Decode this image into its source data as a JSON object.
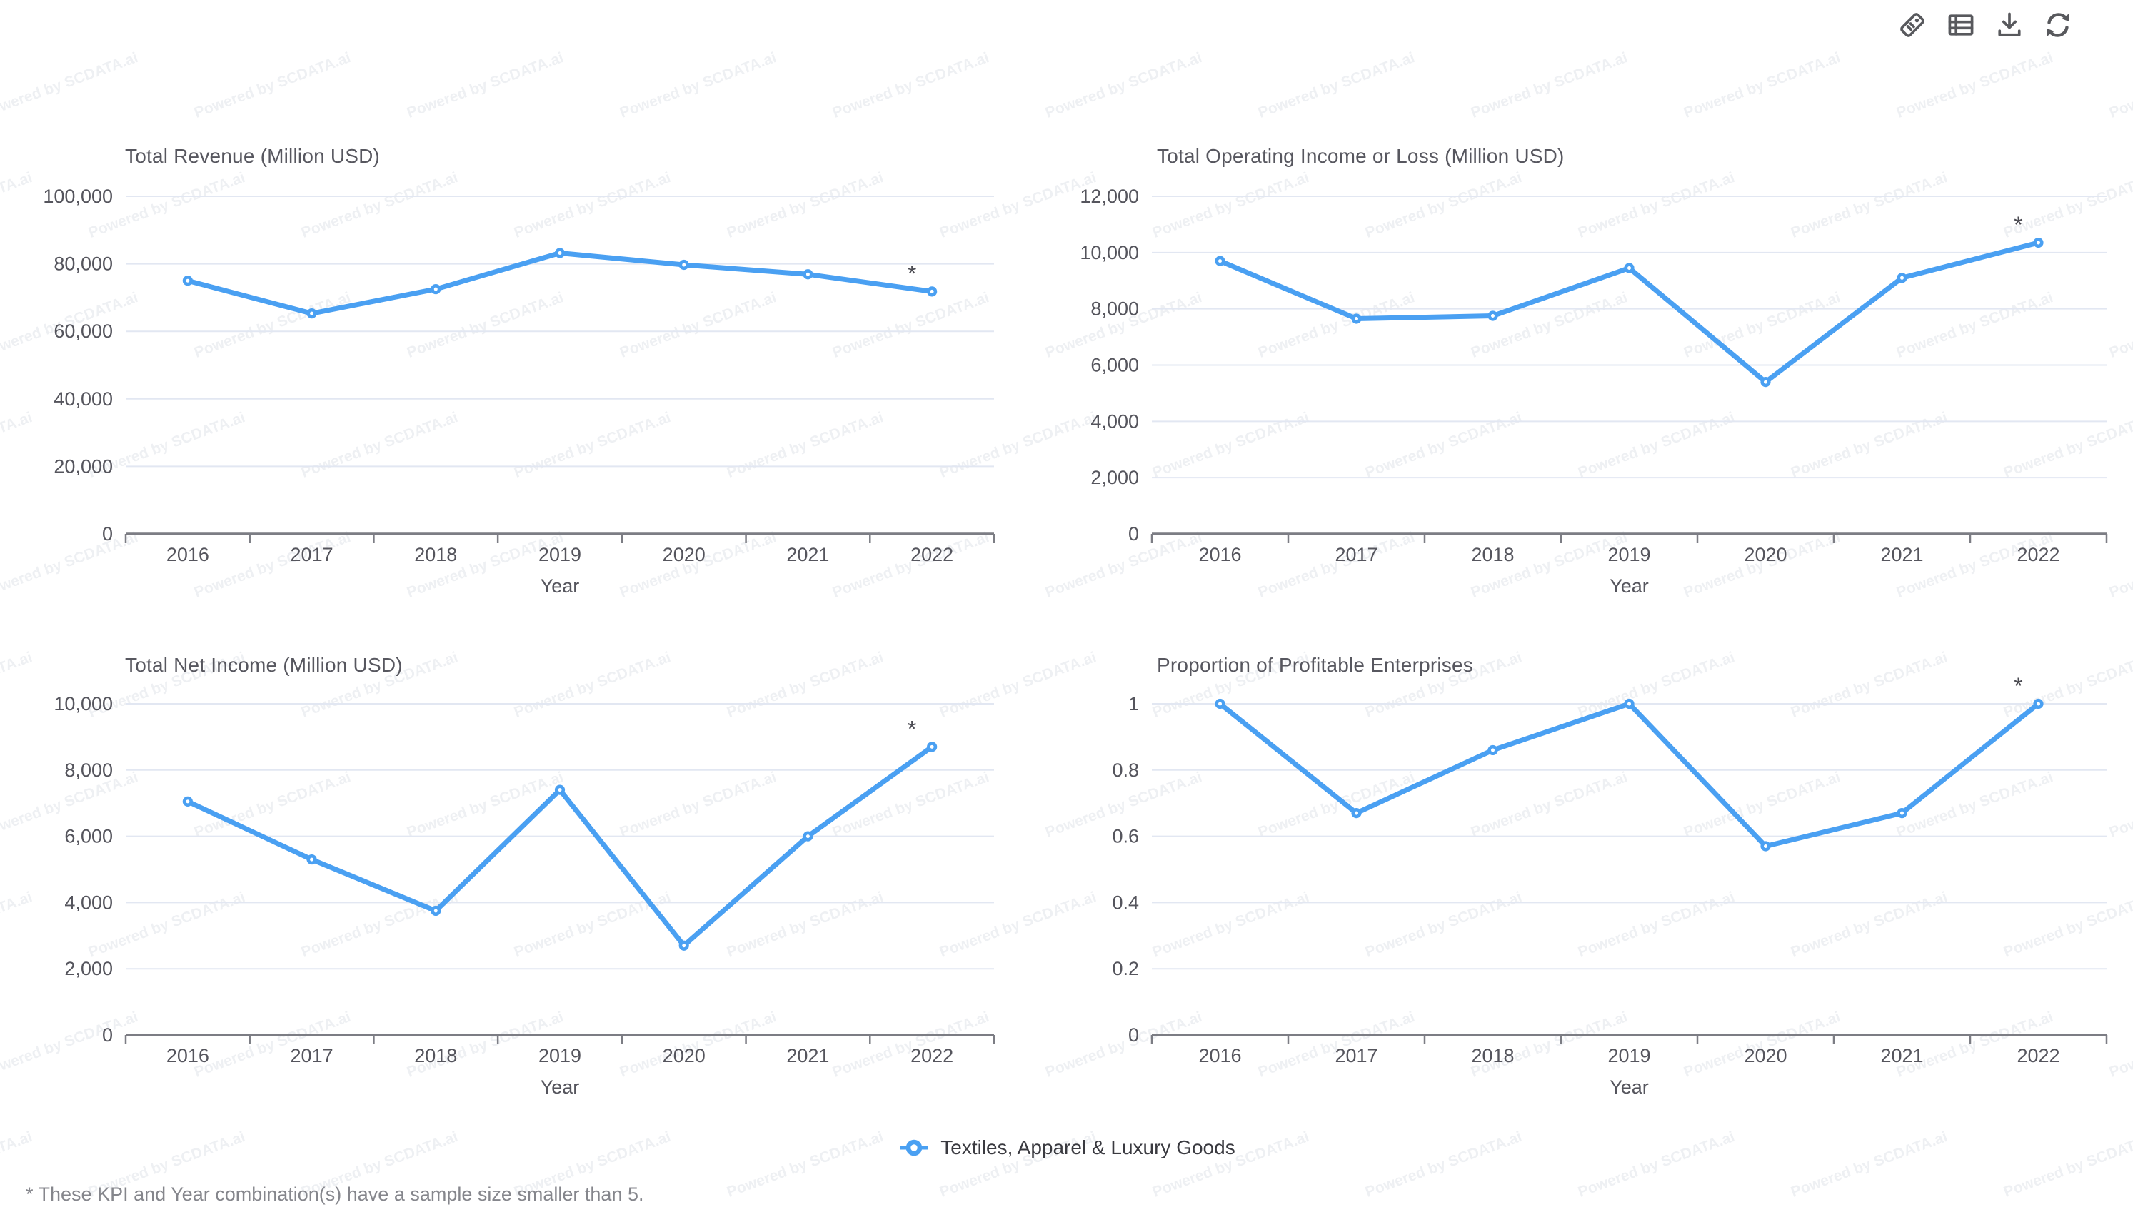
{
  "watermark": {
    "text": "Powered by SCDATA.ai"
  },
  "toolbar": {
    "buttons": [
      {
        "name": "tag"
      },
      {
        "name": "table-view"
      },
      {
        "name": "download"
      },
      {
        "name": "refresh"
      }
    ]
  },
  "legend": {
    "label": "Textiles, Apparel & Luxury Goods",
    "marker_color": "#4aa0f2"
  },
  "footnote": "* These KPI and Year combination(s) have a sample size smaller than 5.",
  "colors": {
    "line": "#4aa0f2",
    "grid": "#e2e7f2",
    "axis": "#7c7d84",
    "tick_text": "#55555d",
    "title_text": "#57575f"
  },
  "chart_data": [
    {
      "id": "total-revenue",
      "type": "line",
      "title": "Total Revenue (Million USD)",
      "xlabel": "Year",
      "x": [
        "2016",
        "2017",
        "2018",
        "2019",
        "2020",
        "2021",
        "2022"
      ],
      "series": [
        {
          "name": "Textiles, Apparel & Luxury Goods",
          "values": [
            75000,
            65300,
            72500,
            83200,
            79700,
            76900,
            71800
          ]
        }
      ],
      "ylim": [
        0,
        100000
      ],
      "y_ticks": [
        "100,000",
        "80,000",
        "60,000",
        "40,000",
        "20,000",
        "0"
      ],
      "grid": true,
      "annotations": [
        {
          "x": "2022",
          "text": "*"
        }
      ]
    },
    {
      "id": "total-operating-income-or-loss",
      "type": "line",
      "title": "Total Operating Income or Loss (Million USD)",
      "xlabel": "Year",
      "x": [
        "2016",
        "2017",
        "2018",
        "2019",
        "2020",
        "2021",
        "2022"
      ],
      "series": [
        {
          "name": "Textiles, Apparel & Luxury Goods",
          "values": [
            9700,
            7650,
            7750,
            9450,
            5400,
            9100,
            10350
          ]
        }
      ],
      "ylim": [
        0,
        12000
      ],
      "y_ticks": [
        "12,000",
        "10,000",
        "8,000",
        "6,000",
        "4,000",
        "2,000",
        "0"
      ],
      "grid": true,
      "annotations": [
        {
          "x": "2022",
          "text": "*"
        }
      ]
    },
    {
      "id": "total-net-income",
      "type": "line",
      "title": "Total Net Income (Million USD)",
      "xlabel": "Year",
      "x": [
        "2016",
        "2017",
        "2018",
        "2019",
        "2020",
        "2021",
        "2022"
      ],
      "series": [
        {
          "name": "Textiles, Apparel & Luxury Goods",
          "values": [
            7050,
            5300,
            3750,
            7400,
            2700,
            6000,
            8700
          ]
        }
      ],
      "ylim": [
        0,
        10000
      ],
      "y_ticks": [
        "10,000",
        "8,000",
        "6,000",
        "4,000",
        "2,000",
        "0"
      ],
      "grid": true,
      "annotations": [
        {
          "x": "2022",
          "text": "*"
        }
      ]
    },
    {
      "id": "proportion-of-profitable-enterprises",
      "type": "line",
      "title": "Proportion of Profitable Enterprises",
      "xlabel": "Year",
      "x": [
        "2016",
        "2017",
        "2018",
        "2019",
        "2020",
        "2021",
        "2022"
      ],
      "series": [
        {
          "name": "Textiles, Apparel & Luxury Goods",
          "values": [
            1,
            0.67,
            0.86,
            1,
            0.57,
            0.67,
            1
          ]
        }
      ],
      "ylim": [
        0,
        1
      ],
      "y_ticks": [
        "1",
        "0.8",
        "0.6",
        "0.4",
        "0.2",
        "0"
      ],
      "grid": true,
      "annotations": [
        {
          "x": "2022",
          "text": "*"
        }
      ]
    }
  ]
}
